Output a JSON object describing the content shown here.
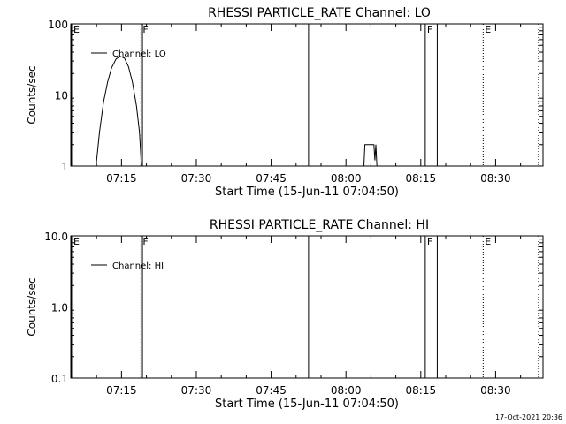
{
  "chart_data": [
    {
      "type": "line",
      "title": "RHESSI PARTICLE_RATE Channel: LO",
      "xlabel": "Start Time (15-Jun-11 07:04:50)",
      "ylabel": "Counts/sec",
      "y_scale": "log",
      "ylim": [
        1,
        100
      ],
      "y_ticks": [
        {
          "value": 1,
          "label": "1"
        },
        {
          "value": 10,
          "label": "10"
        },
        {
          "value": 100,
          "label": "100"
        }
      ],
      "x_unit": "minutes after 07:00",
      "xlim": [
        4.83,
        99.5
      ],
      "x_ticks": [
        {
          "value": 15,
          "label": "07:15"
        },
        {
          "value": 30,
          "label": "07:30"
        },
        {
          "value": 45,
          "label": "07:45"
        },
        {
          "value": 60,
          "label": "08:00"
        },
        {
          "value": 75,
          "label": "08:15"
        },
        {
          "value": 90,
          "label": "08:30"
        }
      ],
      "legend": {
        "label": "Channel: LO",
        "placement": "top-left"
      },
      "series": [
        {
          "name": "Channel: LO",
          "segments": [
            [
              [
                9.9,
                1
              ],
              [
                10.6,
                3
              ],
              [
                11.4,
                8
              ],
              [
                12.2,
                15
              ],
              [
                13.0,
                24
              ],
              [
                13.9,
                32
              ],
              [
                14.7,
                35
              ],
              [
                15.6,
                33
              ],
              [
                16.4,
                25
              ],
              [
                17.2,
                15
              ],
              [
                18.0,
                7
              ],
              [
                18.6,
                3
              ],
              [
                19.0,
                1
              ]
            ],
            [
              [
                63.6,
                1
              ],
              [
                63.8,
                2
              ],
              [
                65.6,
                2
              ],
              [
                65.8,
                1.2
              ],
              [
                66.0,
                2
              ],
              [
                66.2,
                1
              ]
            ]
          ]
        }
      ],
      "markers": [
        {
          "x": 5.0,
          "label": "E",
          "style": "solid"
        },
        {
          "x": 18.9,
          "label": "F",
          "style": "dotted"
        },
        {
          "x": 19.2,
          "label": "",
          "style": "solid"
        },
        {
          "x": 52.5,
          "label": "",
          "style": "solid"
        },
        {
          "x": 75.9,
          "label": "F",
          "style": "solid"
        },
        {
          "x": 78.3,
          "label": "",
          "style": "solid"
        },
        {
          "x": 87.5,
          "label": "E",
          "style": "dotted"
        },
        {
          "x": 98.6,
          "label": "",
          "style": "dotted"
        }
      ]
    },
    {
      "type": "line",
      "title": "RHESSI PARTICLE_RATE Channel: HI",
      "xlabel": "Start Time (15-Jun-11 07:04:50)",
      "ylabel": "Counts/sec",
      "y_scale": "log",
      "ylim": [
        0.1,
        10
      ],
      "y_ticks": [
        {
          "value": 0.1,
          "label": "0.1"
        },
        {
          "value": 1,
          "label": "1.0"
        },
        {
          "value": 10,
          "label": "10.0"
        }
      ],
      "x_unit": "minutes after 07:00",
      "xlim": [
        4.83,
        99.5
      ],
      "x_ticks": [
        {
          "value": 15,
          "label": "07:15"
        },
        {
          "value": 30,
          "label": "07:30"
        },
        {
          "value": 45,
          "label": "07:45"
        },
        {
          "value": 60,
          "label": "08:00"
        },
        {
          "value": 75,
          "label": "08:15"
        },
        {
          "value": 90,
          "label": "08:30"
        }
      ],
      "legend": {
        "label": "Channel: HI",
        "placement": "top-left"
      },
      "series": [
        {
          "name": "Channel: HI",
          "segments": []
        }
      ],
      "markers": [
        {
          "x": 5.0,
          "label": "E",
          "style": "solid"
        },
        {
          "x": 18.9,
          "label": "F",
          "style": "dotted"
        },
        {
          "x": 19.2,
          "label": "",
          "style": "solid"
        },
        {
          "x": 52.5,
          "label": "",
          "style": "solid"
        },
        {
          "x": 75.9,
          "label": "F",
          "style": "solid"
        },
        {
          "x": 78.3,
          "label": "",
          "style": "solid"
        },
        {
          "x": 87.5,
          "label": "E",
          "style": "dotted"
        },
        {
          "x": 98.6,
          "label": "",
          "style": "dotted"
        }
      ]
    }
  ],
  "footer": {
    "timestamp": "17-Oct-2021 20:36"
  }
}
